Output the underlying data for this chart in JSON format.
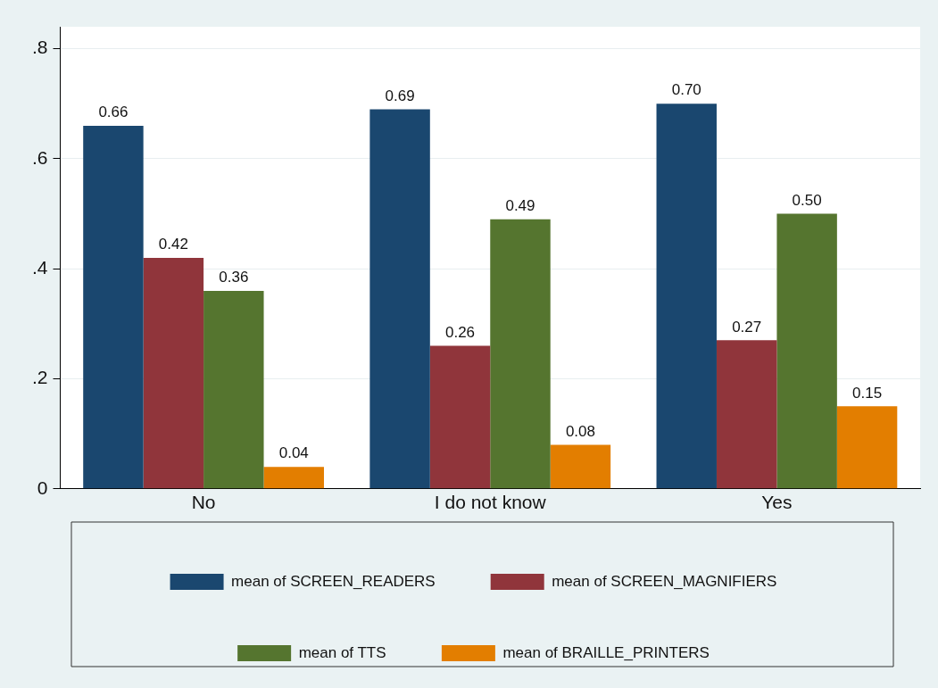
{
  "chart_data": {
    "type": "bar",
    "categories": [
      "No",
      "I do not know",
      "Yes"
    ],
    "series": [
      {
        "name": "mean of SCREEN_READERS",
        "color": "#1a476f",
        "values": [
          0.66,
          0.69,
          0.7
        ],
        "value_labels": [
          "0.66",
          "0.69",
          "0.70"
        ]
      },
      {
        "name": "mean of SCREEN_MAGNIFIERS",
        "color": "#90353b",
        "values": [
          0.42,
          0.26,
          0.27
        ],
        "value_labels": [
          "0.42",
          "0.26",
          "0.27"
        ]
      },
      {
        "name": "mean of TTS",
        "color": "#55752f",
        "values": [
          0.36,
          0.49,
          0.5
        ],
        "value_labels": [
          "0.36",
          "0.49",
          "0.50"
        ]
      },
      {
        "name": "mean of BRAILLE_PRINTERS",
        "color": "#e37e00",
        "values": [
          0.04,
          0.08,
          0.15
        ],
        "value_labels": [
          "0.04",
          "0.08",
          "0.15"
        ]
      }
    ],
    "ylim": [
      0,
      0.84
    ],
    "yticks": [
      {
        "value": 0,
        "label": "0"
      },
      {
        "value": 0.2,
        "label": ".2"
      },
      {
        "value": 0.4,
        "label": ".4"
      },
      {
        "value": 0.6,
        "label": ".6"
      },
      {
        "value": 0.8,
        "label": ".8"
      }
    ],
    "grid": "y",
    "legend": "bottom"
  }
}
